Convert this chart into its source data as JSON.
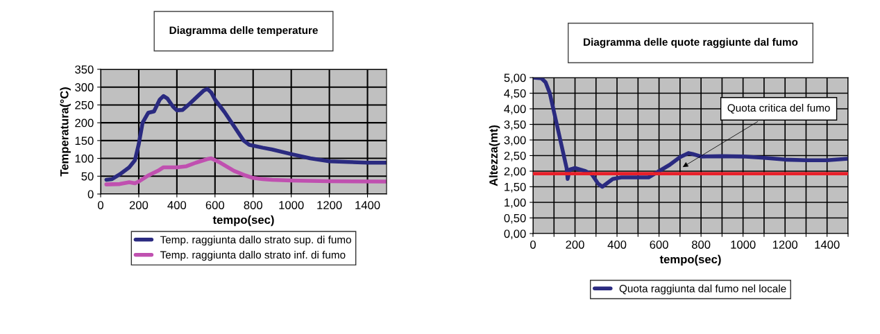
{
  "chart_data": [
    {
      "type": "line",
      "title": "Diagramma delle temperature",
      "xlabel": "tempo(sec)",
      "ylabel": "Temperatura(°C)",
      "xlim": [
        0,
        1500
      ],
      "xticks": [
        0,
        200,
        400,
        600,
        800,
        1000,
        1200,
        1400
      ],
      "ylim": [
        0,
        350
      ],
      "yticks": [
        0,
        50,
        100,
        150,
        200,
        250,
        300,
        350
      ],
      "grid": true,
      "legend": "bottom",
      "line_style": "solid",
      "series": [
        {
          "name": "Temp. raggiunta dallo strato sup. di fumo",
          "color": "#2a2a80",
          "x": [
            30,
            60,
            100,
            150,
            180,
            200,
            220,
            250,
            280,
            310,
            330,
            350,
            380,
            400,
            430,
            460,
            500,
            540,
            560,
            580,
            600,
            650,
            700,
            750,
            780,
            850,
            900,
            1000,
            1100,
            1200,
            1300,
            1400,
            1500
          ],
          "values": [
            40,
            42,
            55,
            75,
            95,
            140,
            200,
            228,
            232,
            265,
            275,
            268,
            245,
            235,
            236,
            250,
            270,
            290,
            295,
            285,
            265,
            230,
            190,
            150,
            138,
            130,
            125,
            112,
            100,
            92,
            90,
            88,
            88
          ]
        },
        {
          "name": "Temp. raggiunta dallo strato inf. di fumo",
          "color": "#c050b0",
          "x": [
            30,
            100,
            150,
            180,
            200,
            250,
            300,
            330,
            400,
            450,
            500,
            560,
            580,
            620,
            700,
            760,
            800,
            850,
            900,
            1000,
            1100,
            1200,
            1500
          ],
          "values": [
            27,
            28,
            33,
            30,
            35,
            52,
            65,
            75,
            75,
            78,
            88,
            98,
            100,
            90,
            65,
            52,
            45,
            42,
            40,
            38,
            37,
            36,
            35
          ]
        }
      ]
    },
    {
      "type": "line",
      "title": "Diagramma delle quote raggiunte dal fumo",
      "xlabel": "tempo(sec)",
      "ylabel": "Altezza(mt)",
      "xlim": [
        0,
        1500
      ],
      "xticks": [
        0,
        {
          "value": 100,
          "label": null
        },
        200,
        {
          "value": 300,
          "label": null
        },
        400,
        {
          "value": 500,
          "label": null
        },
        600,
        {
          "value": 700,
          "label": null
        },
        800,
        {
          "value": 900,
          "label": null
        },
        1000,
        {
          "value": 1100,
          "label": null
        },
        1200,
        {
          "value": 1300,
          "label": null
        },
        1400,
        {
          "value": 1500,
          "label": null
        }
      ],
      "ylim": [
        0,
        5
      ],
      "yticks": [
        {
          "value": 0,
          "label": "0,00"
        },
        {
          "value": 0.5,
          "label": "0,50"
        },
        {
          "value": 1,
          "label": "1,00"
        },
        {
          "value": 1.5,
          "label": "1,50"
        },
        {
          "value": 2,
          "label": "2,00"
        },
        {
          "value": 2.5,
          "label": "2,50"
        },
        {
          "value": 3,
          "label": "3,00"
        },
        {
          "value": 3.5,
          "label": "3,50"
        },
        {
          "value": 4,
          "label": "4,00"
        },
        {
          "value": 4.5,
          "label": "4,50"
        },
        {
          "value": 5,
          "label": "5,00"
        }
      ],
      "grid": true,
      "legend": "bottom",
      "line_style": "solid",
      "ref_lines": [
        {
          "axis": "y",
          "value": 1.92,
          "label": "Quota critica del fumo",
          "color": "#e8202a"
        }
      ],
      "series": [
        {
          "name": "Quota raggiunta dal fumo nel locale",
          "color": "#2a2a80",
          "x": [
            0,
            40,
            60,
            80,
            100,
            130,
            160,
            165,
            175,
            200,
            250,
            280,
            310,
            330,
            350,
            380,
            420,
            500,
            550,
            600,
            650,
            700,
            740,
            760,
            800,
            900,
            1000,
            1100,
            1200,
            1300,
            1400,
            1500
          ],
          "values": [
            5.0,
            4.98,
            4.85,
            4.5,
            3.9,
            3.0,
            2.1,
            1.75,
            2.05,
            2.1,
            2.0,
            1.9,
            1.6,
            1.5,
            1.6,
            1.75,
            1.8,
            1.8,
            1.8,
            2.0,
            2.2,
            2.45,
            2.58,
            2.55,
            2.47,
            2.48,
            2.47,
            2.43,
            2.37,
            2.35,
            2.35,
            2.4
          ]
        }
      ]
    }
  ]
}
